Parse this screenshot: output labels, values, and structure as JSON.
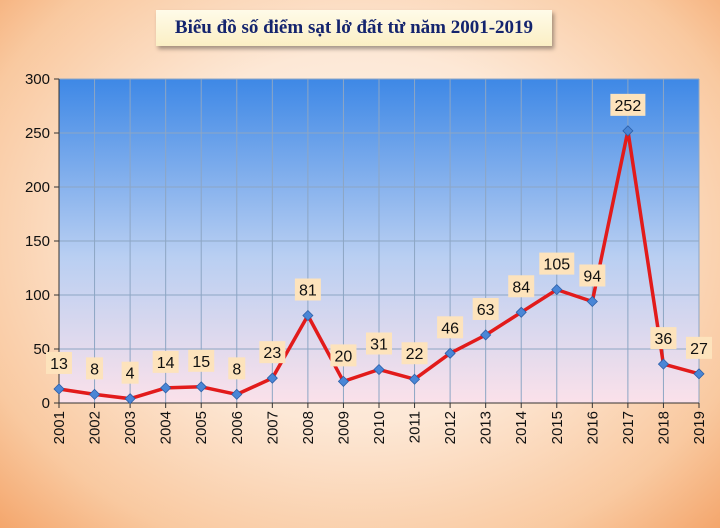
{
  "chart_data": {
    "type": "line",
    "title": "Biểu đồ số điểm sạt lở đất từ năm 2001-2019",
    "xlabel": "",
    "ylabel": "",
    "categories": [
      "2001",
      "2002",
      "2003",
      "2004",
      "2005",
      "2006",
      "2007",
      "2008",
      "2009",
      "2010",
      "2011",
      "2012",
      "2013",
      "2014",
      "2015",
      "2016",
      "2017",
      "2018",
      "2019"
    ],
    "series": [
      {
        "values": [
          13,
          8,
          4,
          14,
          15,
          8,
          23,
          81,
          20,
          31,
          22,
          46,
          63,
          84,
          105,
          94,
          252,
          36,
          27
        ]
      }
    ],
    "ylim": [
      0,
      300
    ],
    "yticks": [
      0,
      50,
      100,
      150,
      200,
      250,
      300
    ],
    "grid": true,
    "legend": "none",
    "colors": {
      "line": "#e21b1b",
      "marker": "#4a86d6",
      "label_bg": "#fde3bc",
      "plot_top": "#3e88e6",
      "plot_bottom": "#fbe1ea",
      "title_text": "#14246e"
    }
  }
}
